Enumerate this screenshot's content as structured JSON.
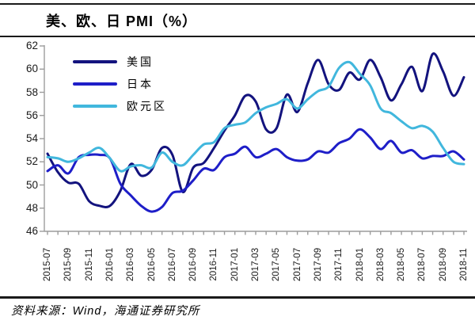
{
  "header": {
    "title": "美、欧、日 PMI（%）"
  },
  "footer": {
    "source": "资料来源：Wind，海通证券研究所"
  },
  "colors": {
    "us": "#13137E",
    "japan": "#1E1EC8",
    "eurozone": "#41B7DD",
    "axis": "#9c9c9c",
    "rule": "#1a1a1a"
  },
  "chart_data": {
    "type": "line",
    "title": "美、欧、日 PMI（%）",
    "xlabel": "",
    "ylabel": "",
    "ylim": [
      46,
      62
    ],
    "y_ticks": [
      46,
      48,
      50,
      52,
      54,
      56,
      58,
      60,
      62
    ],
    "grid": false,
    "legend_position": "upper-left",
    "x": [
      "2015-07",
      "2015-08",
      "2015-09",
      "2015-10",
      "2015-11",
      "2015-12",
      "2016-01",
      "2016-02",
      "2016-03",
      "2016-04",
      "2016-05",
      "2016-06",
      "2016-07",
      "2016-08",
      "2016-09",
      "2016-10",
      "2016-11",
      "2016-12",
      "2017-01",
      "2017-02",
      "2017-03",
      "2017-04",
      "2017-05",
      "2017-06",
      "2017-07",
      "2017-08",
      "2017-09",
      "2017-10",
      "2017-11",
      "2017-12",
      "2018-01",
      "2018-02",
      "2018-03",
      "2018-04",
      "2018-05",
      "2018-06",
      "2018-07",
      "2018-08",
      "2018-09",
      "2018-10",
      "2018-11"
    ],
    "x_tick_labels": [
      "2015-07",
      "2015-09",
      "2015-11",
      "2016-01",
      "2016-03",
      "2016-05",
      "2016-07",
      "2016-09",
      "2016-11",
      "2017-01",
      "2017-03",
      "2017-05",
      "2017-07",
      "2017-09",
      "2017-11",
      "2018-01",
      "2018-03",
      "2018-05",
      "2018-07",
      "2018-09",
      "2018-11"
    ],
    "series": [
      {
        "name": "美国",
        "color": "#13137E",
        "values": [
          52.7,
          51.1,
          50.2,
          50.1,
          48.6,
          48.2,
          48.2,
          49.5,
          51.8,
          50.8,
          51.3,
          53.2,
          52.6,
          49.4,
          51.5,
          51.9,
          53.2,
          54.7,
          56.0,
          57.7,
          57.2,
          54.8,
          54.9,
          57.8,
          56.3,
          58.8,
          60.8,
          58.7,
          58.2,
          59.7,
          59.1,
          60.8,
          59.3,
          57.3,
          58.7,
          60.2,
          58.1,
          61.3,
          59.8,
          57.7,
          59.3
        ]
      },
      {
        "name": "日本",
        "color": "#1E1EC8",
        "values": [
          51.2,
          51.7,
          51.0,
          52.4,
          52.6,
          52.6,
          52.3,
          50.1,
          49.1,
          48.2,
          47.7,
          48.1,
          49.3,
          49.5,
          50.4,
          51.4,
          51.3,
          52.4,
          52.7,
          53.3,
          52.4,
          52.7,
          53.1,
          52.4,
          52.1,
          52.2,
          52.9,
          52.8,
          53.6,
          54.0,
          54.8,
          54.1,
          53.1,
          53.8,
          52.8,
          53.0,
          52.3,
          52.5,
          52.5,
          52.9,
          52.2
        ]
      },
      {
        "name": "欧元区",
        "color": "#41B7DD",
        "values": [
          52.4,
          52.3,
          52.0,
          52.3,
          52.8,
          53.2,
          52.3,
          51.2,
          51.6,
          51.7,
          51.5,
          52.8,
          52.0,
          51.7,
          52.6,
          53.5,
          53.7,
          54.9,
          55.2,
          55.4,
          56.2,
          56.7,
          57.0,
          57.4,
          56.6,
          57.4,
          58.1,
          58.5,
          60.1,
          60.6,
          59.6,
          58.6,
          56.6,
          56.2,
          55.5,
          54.9,
          55.1,
          54.6,
          53.2,
          52.0,
          51.8
        ]
      }
    ]
  }
}
